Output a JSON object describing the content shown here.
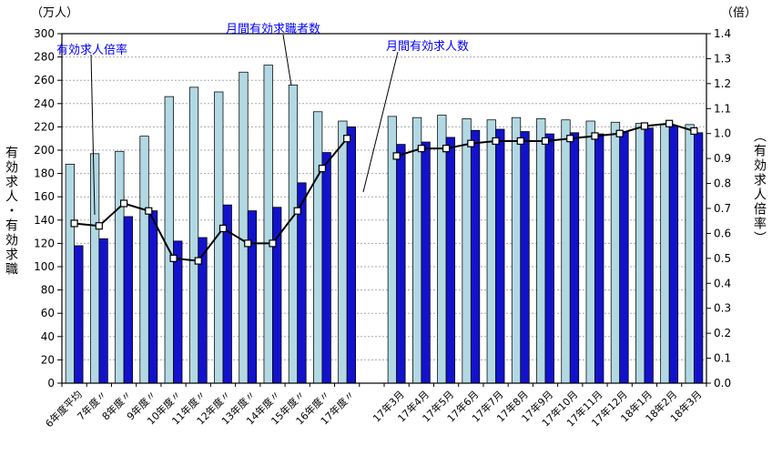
{
  "header": {
    "left_unit": "（万人）",
    "right_unit": "（倍）"
  },
  "axis_titles": {
    "left_vertical": "有効求人・有効求職",
    "right_vertical": "（有効求人倍率）"
  },
  "annotations": {
    "ratio_label": "有効求人倍率",
    "seekers_label": "月間有効求職者数",
    "openings_label": "月間有効求人数"
  },
  "chart_data": {
    "type": "combo-bar-line",
    "title": "",
    "categories_yearly": [
      "6年度平均",
      "7年度〃",
      "8年度〃",
      "9年度〃",
      "10年度〃",
      "11年度〃",
      "12年度〃",
      "13年度〃",
      "14年度〃",
      "15年度〃",
      "16年度〃",
      "17年度〃"
    ],
    "categories_monthly": [
      "17年3月",
      "17年4月",
      "17年5月",
      "17年6月",
      "17年7月",
      "17年8月",
      "17年9月",
      "17年10月",
      "17年11月",
      "17年12月",
      "18年1月",
      "18年2月",
      "18年3月"
    ],
    "left_axis": {
      "min": 0,
      "max": 300,
      "step": 20,
      "title": "有効求人・有効求職",
      "unit": "万人"
    },
    "right_axis": {
      "min": 0,
      "max": 1.4,
      "step": 0.1,
      "title": "有効求人倍率",
      "unit": "倍"
    },
    "grid": true,
    "series": [
      {
        "name": "月間有効求職者数",
        "type": "bar",
        "axis": "left",
        "color": "#b2d9e3",
        "values_yearly": [
          188,
          197,
          199,
          212,
          246,
          254,
          250,
          267,
          273,
          256,
          233,
          225
        ],
        "values_monthly": [
          229,
          228,
          230,
          227,
          226,
          228,
          227,
          226,
          225,
          224,
          223,
          222,
          222
        ]
      },
      {
        "name": "月間有効求人数",
        "type": "bar",
        "axis": "left",
        "color": "#1212cc",
        "values_yearly": [
          118,
          124,
          143,
          148,
          122,
          125,
          153,
          148,
          151,
          172,
          198,
          220
        ],
        "values_monthly": [
          205,
          207,
          211,
          217,
          218,
          216,
          214,
          215,
          214,
          216,
          219,
          221,
          215
        ]
      },
      {
        "name": "有効求人倍率",
        "type": "line",
        "axis": "right",
        "color": "#000000",
        "marker": "white-square",
        "values_yearly": [
          0.64,
          0.63,
          0.72,
          0.69,
          0.5,
          0.49,
          0.62,
          0.56,
          0.56,
          0.69,
          0.86,
          0.98
        ],
        "values_monthly": [
          0.91,
          0.94,
          0.94,
          0.96,
          0.97,
          0.97,
          0.97,
          0.98,
          0.99,
          1.0,
          1.03,
          1.04,
          1.01
        ]
      }
    ],
    "colors": {
      "grid": "#ababab",
      "axis": "#000000",
      "annotation_text": "#0000ff",
      "plot_bg": "#ffffff"
    }
  }
}
